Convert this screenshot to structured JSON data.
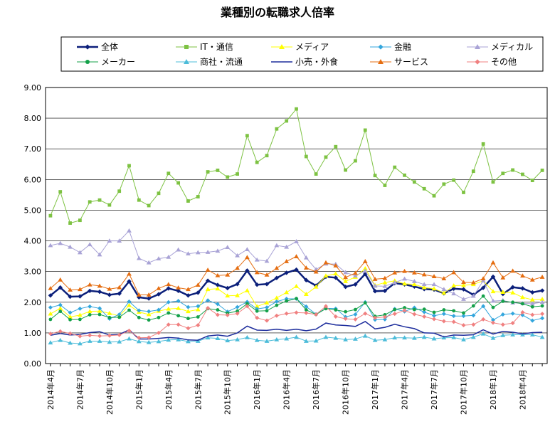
{
  "chart_data": {
    "type": "line",
    "title": "業種別の転職求人倍率",
    "xlabel": "",
    "ylabel": "",
    "ylim": [
      0,
      9
    ],
    "y_ticks": [
      "0.00",
      "1.00",
      "2.00",
      "3.00",
      "4.00",
      "5.00",
      "6.00",
      "7.00",
      "8.00",
      "9.00"
    ],
    "x_tick_labels": [
      "2014年4月",
      "2014年7月",
      "2014年10月",
      "2015年1月",
      "2015年4月",
      "2015年7月",
      "2015年10月",
      "2016年1月",
      "2016年4月",
      "2016年7月",
      "2016年10月",
      "2017年1月",
      "2017年4月",
      "2017年7月",
      "2017年10月",
      "2018年1月",
      "2018年4月"
    ],
    "grid": "horizontal",
    "legend_position": "top",
    "x": [
      "2014-04",
      "2014-05",
      "2014-06",
      "2014-07",
      "2014-08",
      "2014-09",
      "2014-10",
      "2014-11",
      "2014-12",
      "2015-01",
      "2015-02",
      "2015-03",
      "2015-04",
      "2015-05",
      "2015-06",
      "2015-07",
      "2015-08",
      "2015-09",
      "2015-10",
      "2015-11",
      "2015-12",
      "2016-01",
      "2016-02",
      "2016-03",
      "2016-04",
      "2016-05",
      "2016-06",
      "2016-07",
      "2016-08",
      "2016-09",
      "2016-10",
      "2016-11",
      "2016-12",
      "2017-01",
      "2017-02",
      "2017-03",
      "2017-04",
      "2017-05",
      "2017-06",
      "2017-07",
      "2017-08",
      "2017-09",
      "2017-10",
      "2017-11",
      "2017-12",
      "2018-01",
      "2018-02",
      "2018-03",
      "2018-04",
      "2018-05",
      "2018-06"
    ],
    "series": [
      {
        "name": "全体",
        "color": "#0b1f7a",
        "marker": "diamond",
        "line_width": 2.5,
        "values": [
          2.22,
          2.48,
          2.18,
          2.19,
          2.37,
          2.34,
          2.24,
          2.28,
          2.68,
          2.16,
          2.12,
          2.26,
          2.45,
          2.37,
          2.22,
          2.31,
          2.7,
          2.56,
          2.46,
          2.59,
          3.03,
          2.57,
          2.59,
          2.79,
          2.96,
          3.06,
          2.72,
          2.54,
          2.83,
          2.8,
          2.5,
          2.58,
          2.92,
          2.36,
          2.37,
          2.62,
          2.58,
          2.51,
          2.43,
          2.41,
          2.29,
          2.44,
          2.42,
          2.24,
          2.47,
          2.83,
          2.27,
          2.49,
          2.45,
          2.32,
          2.38
        ]
      },
      {
        "name": "IT・通信",
        "color": "#7dc242",
        "marker": "square",
        "line_width": 1,
        "values": [
          4.82,
          5.6,
          4.58,
          4.67,
          5.27,
          5.33,
          5.17,
          5.62,
          6.45,
          5.33,
          5.15,
          5.55,
          6.2,
          5.89,
          5.3,
          5.44,
          6.25,
          6.3,
          6.08,
          6.18,
          7.43,
          6.56,
          6.78,
          7.65,
          7.91,
          8.3,
          6.75,
          6.18,
          6.73,
          7.07,
          6.31,
          6.61,
          7.61,
          6.13,
          5.81,
          6.4,
          6.14,
          5.92,
          5.7,
          5.47,
          5.85,
          5.98,
          5.58,
          6.27,
          7.16,
          5.92,
          6.2,
          6.31,
          6.17,
          5.97,
          6.3
        ]
      },
      {
        "name": "メディア",
        "color": "#ffff00",
        "marker": "triangle",
        "line_width": 1,
        "values": [
          1.62,
          1.8,
          1.52,
          1.58,
          1.7,
          1.71,
          1.64,
          1.55,
          1.9,
          1.68,
          1.6,
          1.71,
          1.78,
          1.8,
          1.7,
          1.76,
          2.42,
          2.44,
          2.21,
          2.22,
          2.38,
          1.86,
          1.98,
          2.14,
          2.32,
          2.52,
          2.26,
          2.5,
          2.86,
          2.93,
          2.68,
          2.82,
          3.1,
          2.55,
          2.64,
          2.7,
          2.6,
          2.58,
          2.48,
          2.44,
          2.3,
          2.54,
          2.55,
          2.58,
          2.7,
          2.35,
          2.33,
          2.31,
          2.16,
          2.08,
          2.1
        ]
      },
      {
        "name": "金融",
        "color": "#33a6dd",
        "marker": "diamond",
        "line_width": 1,
        "values": [
          1.83,
          1.91,
          1.66,
          1.79,
          1.86,
          1.8,
          1.46,
          1.6,
          2.02,
          1.73,
          1.7,
          1.75,
          2.0,
          2.04,
          1.84,
          1.87,
          2.06,
          1.94,
          1.69,
          1.84,
          2.01,
          1.78,
          1.83,
          2.02,
          2.11,
          2.11,
          1.86,
          1.61,
          1.8,
          1.79,
          1.52,
          1.6,
          2.0,
          1.43,
          1.44,
          1.78,
          1.7,
          1.82,
          1.68,
          1.56,
          1.62,
          1.55,
          1.55,
          1.57,
          1.87,
          1.42,
          1.6,
          1.63,
          1.58,
          1.4,
          1.48
        ]
      },
      {
        "name": "メディカル",
        "color": "#a9a3d6",
        "marker": "triangle",
        "line_width": 1,
        "values": [
          3.85,
          3.92,
          3.8,
          3.62,
          3.88,
          3.55,
          4.0,
          4.0,
          4.33,
          3.43,
          3.29,
          3.42,
          3.47,
          3.71,
          3.58,
          3.62,
          3.63,
          3.67,
          3.79,
          3.52,
          3.72,
          3.38,
          3.34,
          3.85,
          3.8,
          3.98,
          3.45,
          3.07,
          3.25,
          3.24,
          2.97,
          2.86,
          3.02,
          2.53,
          2.52,
          2.64,
          2.76,
          2.68,
          2.58,
          2.58,
          2.42,
          2.28,
          2.1,
          2.2,
          2.7,
          2.04,
          2.06,
          1.98,
          1.96,
          1.95,
          2.0
        ]
      },
      {
        "name": "メーカー",
        "color": "#14a14a",
        "marker": "circle",
        "line_width": 1,
        "values": [
          1.44,
          1.7,
          1.43,
          1.44,
          1.59,
          1.6,
          1.5,
          1.51,
          1.74,
          1.5,
          1.42,
          1.5,
          1.65,
          1.56,
          1.47,
          1.52,
          1.79,
          1.75,
          1.64,
          1.71,
          1.95,
          1.71,
          1.72,
          1.9,
          2.04,
          2.12,
          1.75,
          1.6,
          1.79,
          1.75,
          1.69,
          1.76,
          1.98,
          1.54,
          1.59,
          1.76,
          1.82,
          1.76,
          1.77,
          1.67,
          1.75,
          1.72,
          1.65,
          1.88,
          2.2,
          1.83,
          2.03,
          2.0,
          1.95,
          1.85,
          1.88
        ]
      },
      {
        "name": "商社・流通",
        "color": "#4cbcd9",
        "marker": "triangle",
        "line_width": 1,
        "values": [
          0.68,
          0.76,
          0.67,
          0.65,
          0.73,
          0.73,
          0.7,
          0.71,
          0.81,
          0.72,
          0.69,
          0.72,
          0.77,
          0.78,
          0.72,
          0.73,
          0.84,
          0.82,
          0.75,
          0.78,
          0.85,
          0.76,
          0.73,
          0.78,
          0.81,
          0.86,
          0.73,
          0.74,
          0.86,
          0.83,
          0.78,
          0.8,
          0.9,
          0.76,
          0.78,
          0.84,
          0.84,
          0.83,
          0.86,
          0.81,
          0.84,
          0.85,
          0.78,
          0.86,
          0.97,
          0.83,
          0.92,
          0.94,
          0.94,
          0.94,
          0.86
        ]
      },
      {
        "name": "小売・外食",
        "color": "#1c2c9c",
        "marker": "none",
        "line_width": 1.5,
        "values": [
          0.92,
          0.98,
          0.93,
          0.95,
          1.01,
          1.04,
          0.93,
          0.95,
          1.1,
          0.8,
          0.8,
          0.82,
          0.85,
          0.83,
          0.77,
          0.76,
          0.9,
          0.93,
          0.89,
          1.0,
          1.22,
          1.09,
          1.08,
          1.12,
          1.08,
          1.12,
          1.07,
          1.12,
          1.32,
          1.26,
          1.24,
          1.21,
          1.37,
          1.13,
          1.18,
          1.28,
          1.2,
          1.14,
          1.0,
          0.99,
          0.87,
          0.93,
          0.92,
          0.94,
          1.1,
          0.96,
          1.05,
          1.02,
          0.97,
          1.01,
          1.02
        ]
      },
      {
        "name": "サービス",
        "color": "#e56d10",
        "marker": "triangle",
        "line_width": 1,
        "values": [
          2.45,
          2.73,
          2.4,
          2.42,
          2.57,
          2.53,
          2.43,
          2.48,
          2.92,
          2.24,
          2.24,
          2.45,
          2.58,
          2.47,
          2.42,
          2.56,
          3.05,
          2.87,
          2.89,
          3.11,
          3.46,
          2.97,
          2.89,
          3.11,
          3.33,
          3.49,
          3.12,
          2.99,
          3.29,
          3.19,
          2.81,
          2.95,
          3.33,
          2.75,
          2.78,
          2.96,
          3.01,
          2.96,
          2.9,
          2.84,
          2.77,
          2.97,
          2.65,
          2.64,
          2.77,
          3.29,
          2.8,
          3.02,
          2.86,
          2.73,
          2.82
        ]
      },
      {
        "name": "その他",
        "color": "#f08080",
        "marker": "diamond",
        "line_width": 1,
        "values": [
          0.97,
          1.05,
          0.98,
          0.89,
          0.92,
          0.9,
          0.91,
          0.93,
          1.07,
          0.84,
          0.85,
          1.0,
          1.27,
          1.27,
          1.15,
          1.25,
          1.81,
          1.59,
          1.58,
          1.63,
          1.87,
          1.49,
          1.4,
          1.56,
          1.63,
          1.66,
          1.65,
          1.6,
          1.87,
          1.53,
          1.46,
          1.44,
          1.63,
          1.49,
          1.52,
          1.62,
          1.73,
          1.61,
          1.53,
          1.45,
          1.38,
          1.36,
          1.25,
          1.27,
          1.44,
          1.33,
          1.27,
          1.32,
          1.67,
          1.59,
          1.62
        ]
      }
    ]
  }
}
